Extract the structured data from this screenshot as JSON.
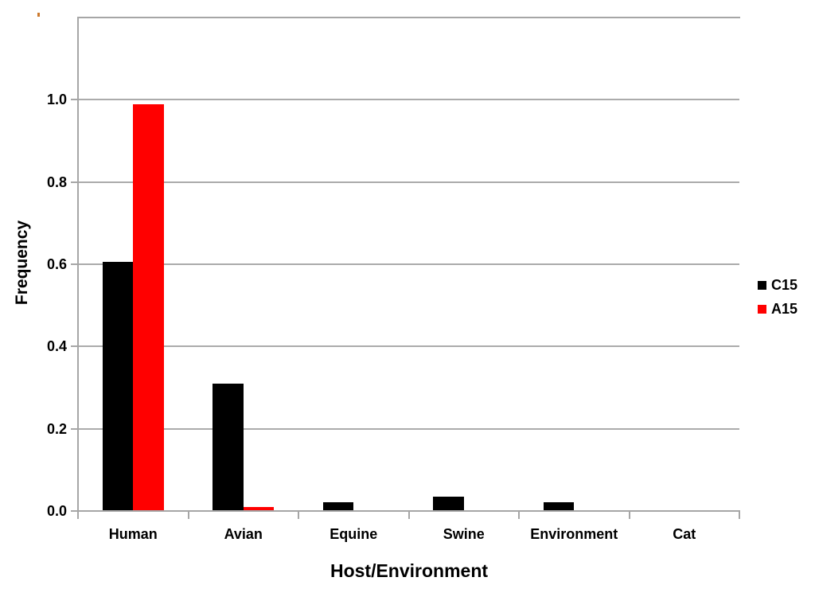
{
  "chart_data": {
    "type": "bar",
    "title": "",
    "xlabel": "Host/Environment",
    "ylabel": "Frequency",
    "categories": [
      "Human",
      "Avian",
      "Equine",
      "Swine",
      "Environment",
      "Cat"
    ],
    "series": [
      {
        "name": "C15",
        "color": "#000000",
        "values": [
          0.605,
          0.31,
          0.022,
          0.035,
          0.022,
          0
        ]
      },
      {
        "name": "A15",
        "color": "#ff0000",
        "values": [
          0.99,
          0.01,
          0,
          0,
          0,
          0
        ]
      }
    ],
    "ylim": [
      0,
      1.2
    ],
    "yticks": [
      0.0,
      0.2,
      0.4,
      0.6,
      0.8,
      1.0
    ],
    "ytick_labels": [
      "0.0",
      "0.2",
      "0.4",
      "0.6",
      "0.8",
      "1.0"
    ],
    "grid": true,
    "gridline_color": "#ababab",
    "axis_color": "#a6a6a6",
    "legend_position": "right",
    "legend_labels": [
      "C15",
      "A15"
    ]
  },
  "artifact": {
    "color": "#cc7a2e"
  }
}
